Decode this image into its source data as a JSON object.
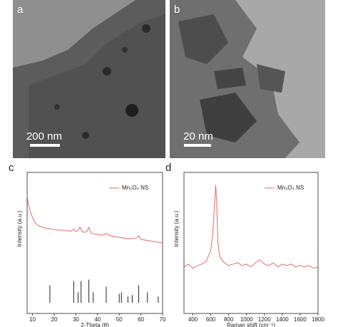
{
  "images": [
    {
      "label": "a",
      "scale_bar": "200 nm"
    },
    {
      "label": "b",
      "scale_bar": "20 nm"
    }
  ],
  "chart_data": [
    {
      "type": "line",
      "panel": "c",
      "x_label": "2-Theta (θ)",
      "y_label": "Intensity (a.u.)",
      "xlim": [
        7.5,
        70
      ],
      "xticks": [
        10,
        20,
        30,
        40,
        50,
        60,
        70
      ],
      "ylim": [
        0,
        100
      ],
      "legend": "upper right",
      "x": [
        7.5,
        8,
        9,
        10,
        11,
        12,
        13,
        14,
        16,
        18,
        20,
        22,
        24,
        26,
        28,
        29,
        30,
        31,
        32,
        33,
        34,
        35,
        36,
        37,
        38,
        40,
        42,
        44,
        46,
        48,
        50,
        52,
        54,
        56,
        58,
        59,
        60,
        62,
        64,
        66,
        68,
        70
      ],
      "series": [
        {
          "name": "Mn₃O₄ NS",
          "color": "#e06b6b",
          "values": [
            84,
            78,
            72,
            68,
            65,
            63,
            62,
            61.5,
            60.5,
            60,
            59.5,
            59,
            59,
            58.5,
            58.5,
            60,
            58,
            59,
            61,
            58,
            57.5,
            58,
            61,
            57,
            56.5,
            56,
            55.5,
            56.5,
            55,
            54.5,
            54,
            53.5,
            53,
            53,
            53.5,
            55,
            52.5,
            52,
            51.5,
            51,
            50.5,
            50
          ]
        }
      ],
      "reference": {
        "color": "#222",
        "x": [
          18,
          29,
          31,
          32.4,
          36,
          38,
          44,
          50,
          51,
          54,
          56,
          59,
          63,
          68
        ],
        "values": [
          20,
          23,
          15,
          23,
          24,
          15,
          19,
          14,
          15,
          12,
          13,
          20,
          15,
          12
        ]
      }
    },
    {
      "type": "line",
      "panel": "d",
      "x_label": "Raman shift (cm⁻¹)",
      "y_label": "Intensity (a.u.)",
      "xlim": [
        300,
        1800
      ],
      "xticks": [
        400,
        600,
        800,
        1000,
        1200,
        1400,
        1600,
        1800
      ],
      "ylim": [
        0,
        100
      ],
      "legend": "upper right",
      "x": [
        300,
        350,
        400,
        450,
        500,
        550,
        600,
        620,
        640,
        655,
        665,
        680,
        700,
        750,
        800,
        850,
        900,
        950,
        1000,
        1050,
        1100,
        1150,
        1200,
        1250,
        1300,
        1350,
        1400,
        1450,
        1500,
        1550,
        1600,
        1650,
        1700,
        1750,
        1800
      ],
      "series": [
        {
          "name": "Mn₃O₄ NS",
          "color": "#e06b6b",
          "values": [
            33,
            35,
            32,
            34,
            35,
            37,
            45,
            55,
            75,
            91,
            80,
            50,
            40,
            36,
            34,
            35,
            36,
            34,
            35,
            33,
            36,
            38,
            35,
            34,
            36,
            33,
            35,
            34,
            35,
            33,
            34,
            33,
            34,
            32,
            33
          ]
        }
      ]
    }
  ]
}
